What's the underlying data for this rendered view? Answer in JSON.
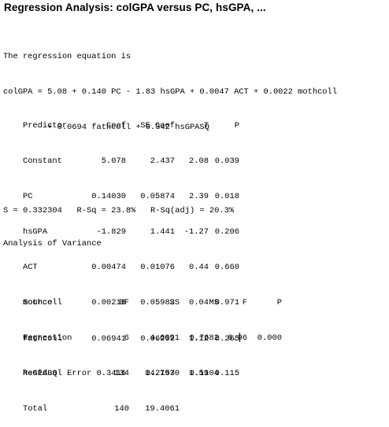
{
  "title": "Regression Analysis: colGPA versus PC, hsGPA, ...",
  "equation": {
    "intro": "The regression equation is",
    "line1": "colGPA = 5.08 + 0.140 PC - 1.83 hsGPA + 0.0047 ACT + 0.0022 mothcoll",
    "line2": "         + 0.0694 fathcoll + 0.342 hsGPASQ"
  },
  "coef_table": {
    "headers": [
      "Predictor",
      "Coef",
      "SE Coef",
      "T",
      "P"
    ],
    "rows": [
      [
        "Constant",
        "5.078",
        "2.437",
        "2.08",
        "0.039"
      ],
      [
        "PC",
        "0.14030",
        "0.05874",
        "2.39",
        "0.018"
      ],
      [
        "hsGPA",
        "-1.829",
        "1.441",
        "-1.27",
        "0.206"
      ],
      [
        "ACT",
        "0.00474",
        "0.01076",
        "0.44",
        "0.660"
      ],
      [
        "mothcoll",
        "0.00216",
        "0.05982",
        "0.04",
        "0.971"
      ],
      [
        "fathcoll",
        "0.06941",
        "0.06202",
        "1.12",
        "0.265"
      ],
      [
        "hsGPASQ",
        "0.3416",
        "0.2153",
        "1.59",
        "0.115"
      ]
    ]
  },
  "summary": "S = 0.332304   R-Sq = 23.8%   R-Sq(adj) = 20.3%",
  "anova": {
    "heading": "Analysis of Variance",
    "headers": [
      "Source",
      "DF",
      "SS",
      "MS",
      "F",
      "P"
    ],
    "rows": [
      [
        "Regression",
        "6",
        "4.6091",
        "0.7682",
        "6.96",
        "0.000"
      ],
      [
        "Residual Error",
        "134",
        "14.7970",
        "0.1104",
        "",
        ""
      ],
      [
        "Total",
        "140",
        "19.4061",
        "",
        "",
        ""
      ]
    ]
  }
}
